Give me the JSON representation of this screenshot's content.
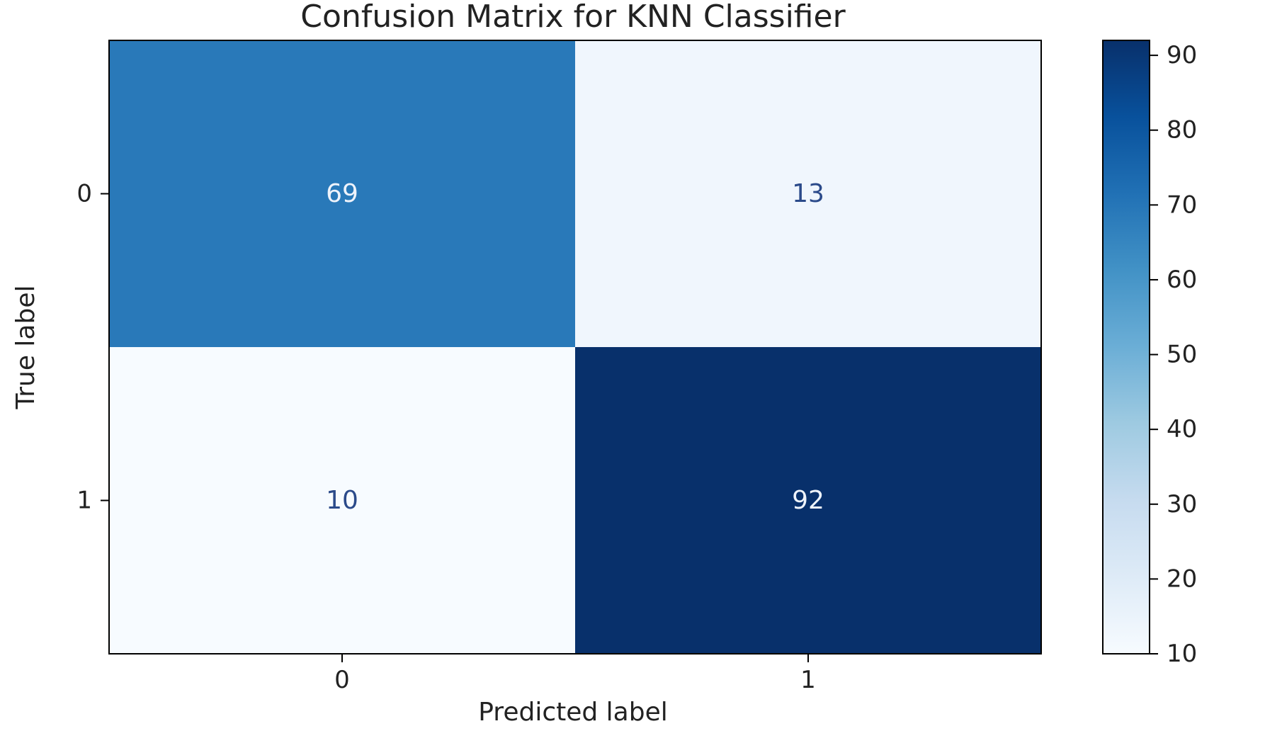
{
  "chart_data": {
    "type": "heatmap",
    "title": "Confusion Matrix for KNN Classifier",
    "xlabel": "Predicted label",
    "ylabel": "True label",
    "x_categories": [
      "0",
      "1"
    ],
    "y_categories": [
      "0",
      "1"
    ],
    "matrix": [
      [
        69,
        13
      ],
      [
        10,
        92
      ]
    ],
    "colormap": "Blues",
    "colorbar": {
      "range": [
        10,
        92
      ],
      "ticks": [
        10,
        20,
        30,
        40,
        50,
        60,
        70,
        80,
        90
      ]
    },
    "grid": false
  },
  "colors": {
    "dark_text": "#2b4a8a",
    "light_text": "#eef3fb",
    "colormap_stops": [
      "#f7fbff",
      "#deebf7",
      "#c6dbef",
      "#9ecae1",
      "#6baed6",
      "#4292c6",
      "#2171b5",
      "#08519c",
      "#08306b"
    ]
  }
}
